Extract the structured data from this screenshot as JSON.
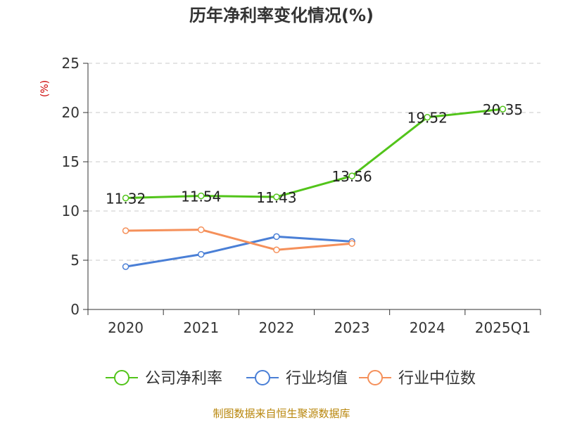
{
  "chart_data": {
    "type": "line",
    "title": "历年净利率变化情况(%)",
    "ylabel": "(%)",
    "xlabel": "",
    "categories": [
      "2020",
      "2021",
      "2022",
      "2023",
      "2024",
      "2025Q1"
    ],
    "ylim": [
      0,
      25
    ],
    "yticks": [
      0,
      5,
      10,
      15,
      20,
      25
    ],
    "grid": true,
    "legend_position": "bottom",
    "series": [
      {
        "name": "公司净利率",
        "color": "#52c41a",
        "values": [
          11.32,
          11.54,
          11.43,
          13.56,
          19.52,
          20.35
        ],
        "labels": [
          "11.32",
          "11.54",
          "11.43",
          "13.56",
          "19.52",
          "20.35"
        ]
      },
      {
        "name": "行业均值",
        "color": "#4a7fd6",
        "values": [
          4.35,
          5.6,
          7.4,
          6.9,
          null,
          null
        ]
      },
      {
        "name": "行业中位数",
        "color": "#f5905a",
        "values": [
          8.0,
          8.1,
          6.05,
          6.7,
          null,
          null
        ]
      }
    ]
  },
  "source": "制图数据来自恒生聚源数据库"
}
